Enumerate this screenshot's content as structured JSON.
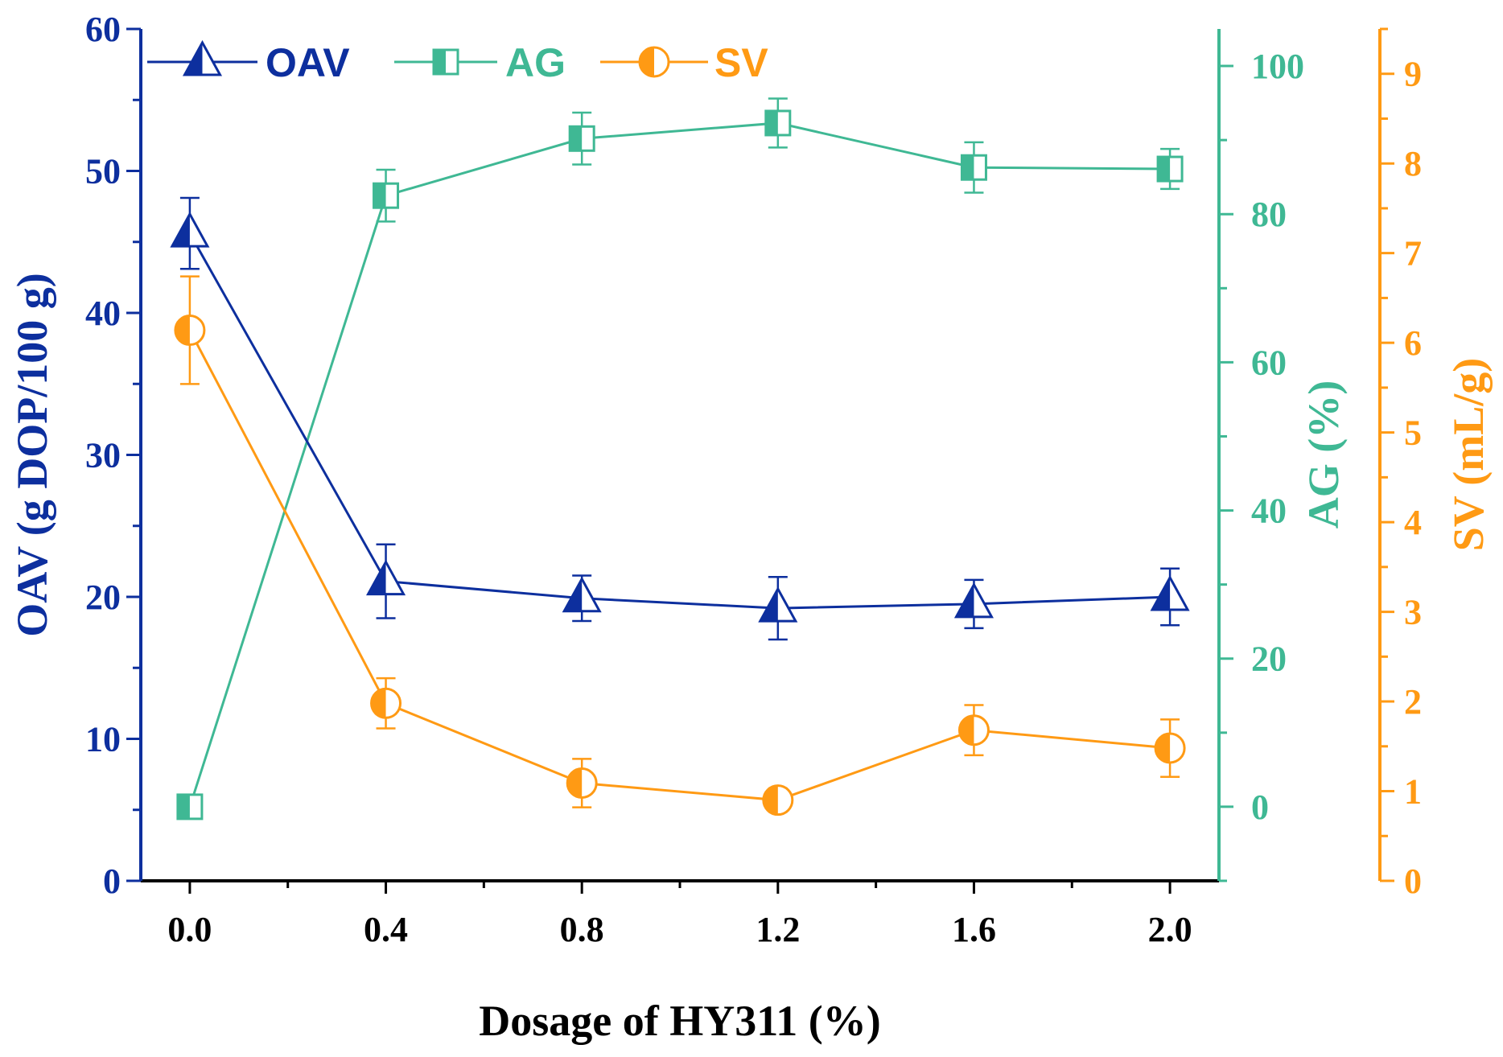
{
  "chart_data": {
    "type": "line",
    "xlabel": "Dosage of HY311 (%)",
    "x": [
      0.0,
      0.4,
      0.8,
      1.2,
      1.6,
      2.0
    ],
    "x_tick_labels": [
      "0.0",
      "0.4",
      "0.8",
      "1.2",
      "1.6",
      "2.0"
    ],
    "xlim": [
      -0.1,
      2.1
    ],
    "axes": {
      "left": {
        "label": "OAV (g DOP/100 g)",
        "lim": [
          0,
          60
        ],
        "ticks": [
          "0",
          "10",
          "20",
          "30",
          "40",
          "50",
          "60"
        ],
        "color": "#0d2f9e"
      },
      "right1": {
        "label": "AG (%)",
        "lim": [
          -10,
          105
        ],
        "ticks": [
          "0",
          "20",
          "40",
          "60",
          "80",
          "100"
        ],
        "color": "#3fb894"
      },
      "right2": {
        "label": "SV (mL/g)",
        "lim": [
          0,
          9.5
        ],
        "ticks": [
          "0",
          "1",
          "2",
          "3",
          "4",
          "5",
          "6",
          "7",
          "8",
          "9"
        ],
        "color": "#ff9a14"
      }
    },
    "series": [
      {
        "name": "OAV",
        "axis": "left",
        "marker": "triangle",
        "color": "#0d2f9e",
        "values": [
          45.6,
          21.1,
          19.9,
          19.2,
          19.5,
          20.0
        ],
        "errors": [
          2.5,
          2.6,
          1.6,
          2.2,
          1.7,
          2.0
        ]
      },
      {
        "name": "AG",
        "axis": "right1",
        "marker": "square",
        "color": "#3fb894",
        "values": [
          0,
          82.5,
          90.2,
          92.3,
          86.3,
          86.1
        ],
        "errors": [
          0,
          3.5,
          3.5,
          3.3,
          3.4,
          2.7
        ]
      },
      {
        "name": "SV",
        "axis": "right2",
        "marker": "circle",
        "color": "#ff9a14",
        "values": [
          6.14,
          1.98,
          1.09,
          0.9,
          1.68,
          1.48
        ],
        "errors": [
          0.6,
          0.28,
          0.27,
          0.13,
          0.28,
          0.32
        ]
      }
    ],
    "legend": {
      "position": "top-left",
      "entries": [
        "OAV",
        "AG",
        "SV"
      ]
    }
  }
}
